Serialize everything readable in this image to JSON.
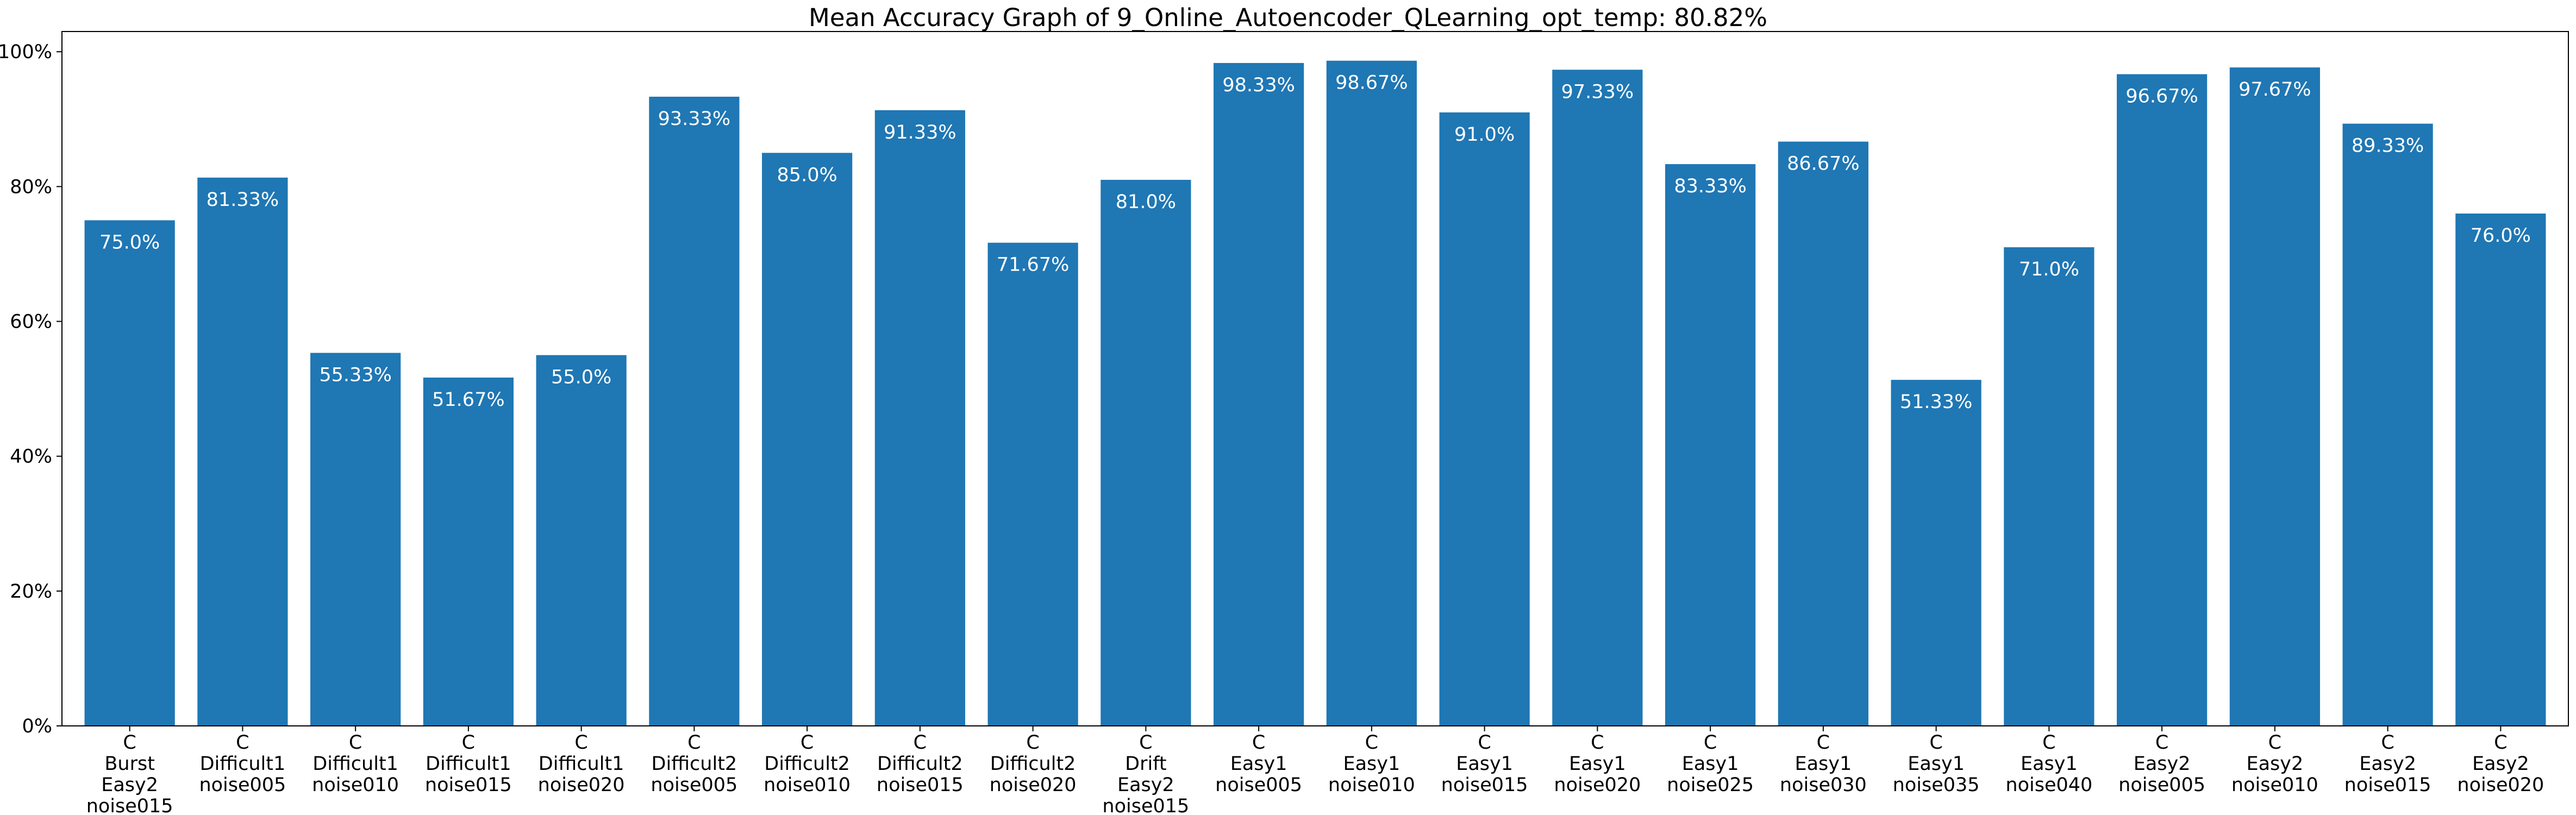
{
  "chart_data": {
    "type": "bar",
    "title": "Mean Accuracy Graph of 9_Online_Autoencoder_QLearning_opt_temp: 80.82%",
    "xlabel": "",
    "ylabel": "",
    "ylim": [
      0,
      1.03
    ],
    "yticks": [
      0,
      0.2,
      0.4,
      0.6,
      0.8,
      1.0
    ],
    "ytick_labels": [
      "0%",
      "20%",
      "40%",
      "60%",
      "80%",
      "100%"
    ],
    "grid": false,
    "bar_color": "#1f77b4",
    "label_color": "#ffffff",
    "categories": [
      [
        "C",
        "Burst",
        "Easy2",
        "noise015"
      ],
      [
        "C",
        "Difficult1",
        "noise005"
      ],
      [
        "C",
        "Difficult1",
        "noise010"
      ],
      [
        "C",
        "Difficult1",
        "noise015"
      ],
      [
        "C",
        "Difficult1",
        "noise020"
      ],
      [
        "C",
        "Difficult2",
        "noise005"
      ],
      [
        "C",
        "Difficult2",
        "noise010"
      ],
      [
        "C",
        "Difficult2",
        "noise015"
      ],
      [
        "C",
        "Difficult2",
        "noise020"
      ],
      [
        "C",
        "Drift",
        "Easy2",
        "noise015"
      ],
      [
        "C",
        "Easy1",
        "noise005"
      ],
      [
        "C",
        "Easy1",
        "noise010"
      ],
      [
        "C",
        "Easy1",
        "noise015"
      ],
      [
        "C",
        "Easy1",
        "noise020"
      ],
      [
        "C",
        "Easy1",
        "noise025"
      ],
      [
        "C",
        "Easy1",
        "noise030"
      ],
      [
        "C",
        "Easy1",
        "noise035"
      ],
      [
        "C",
        "Easy1",
        "noise040"
      ],
      [
        "C",
        "Easy2",
        "noise005"
      ],
      [
        "C",
        "Easy2",
        "noise010"
      ],
      [
        "C",
        "Easy2",
        "noise015"
      ],
      [
        "C",
        "Easy2",
        "noise020"
      ]
    ],
    "values": [
      0.75,
      0.8133,
      0.5533,
      0.5167,
      0.55,
      0.9333,
      0.85,
      0.9133,
      0.7167,
      0.81,
      0.9833,
      0.9867,
      0.91,
      0.9733,
      0.8333,
      0.8667,
      0.5133,
      0.71,
      0.9667,
      0.9767,
      0.8933,
      0.76
    ],
    "value_labels": [
      "75.0%",
      "81.33%",
      "55.33%",
      "51.67%",
      "55.0%",
      "93.33%",
      "85.0%",
      "91.33%",
      "71.67%",
      "81.0%",
      "98.33%",
      "98.67%",
      "91.0%",
      "97.33%",
      "83.33%",
      "86.67%",
      "51.33%",
      "71.0%",
      "96.67%",
      "97.67%",
      "89.33%",
      "76.0%"
    ]
  }
}
